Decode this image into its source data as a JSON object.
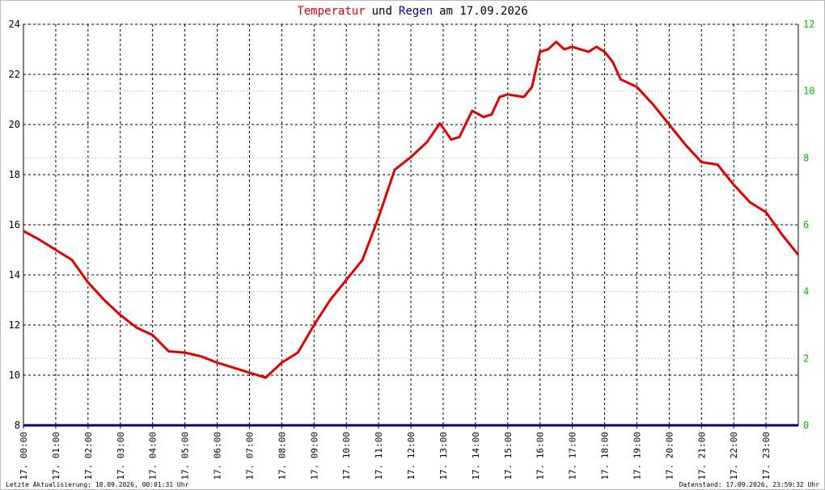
{
  "chart_data": {
    "type": "line",
    "title": [
      {
        "text": "Temperatur",
        "color": "#e00000"
      },
      {
        "text": "und",
        "color": "#000000"
      },
      {
        "text": "Regen",
        "color": "#000080"
      },
      {
        "text": "am 17.09.2026",
        "color": "#000000"
      }
    ],
    "footer_left": "Letzte Aktualisierung: 18.09.2026, 00:01:31 Uhr",
    "footer_right": "Datenstand: 17.09.2026, 23:59:32 Uhr",
    "xlim": [
      0,
      24
    ],
    "xticks": [
      {
        "value": 0,
        "label": "17. 00:00"
      },
      {
        "value": 1,
        "label": "17. 01:00"
      },
      {
        "value": 2,
        "label": "17. 02:00"
      },
      {
        "value": 3,
        "label": "17. 03:00"
      },
      {
        "value": 4,
        "label": "17. 04:00"
      },
      {
        "value": 5,
        "label": "17. 05:00"
      },
      {
        "value": 6,
        "label": "17. 06:00"
      },
      {
        "value": 7,
        "label": "17. 07:00"
      },
      {
        "value": 8,
        "label": "17. 08:00"
      },
      {
        "value": 9,
        "label": "17. 09:00"
      },
      {
        "value": 10,
        "label": "17. 10:00"
      },
      {
        "value": 11,
        "label": "17. 11:00"
      },
      {
        "value": 12,
        "label": "17. 12:00"
      },
      {
        "value": 13,
        "label": "17. 13:00"
      },
      {
        "value": 14,
        "label": "17. 14:00"
      },
      {
        "value": 15,
        "label": "17. 15:00"
      },
      {
        "value": 16,
        "label": "17. 16:00"
      },
      {
        "value": 17,
        "label": "17. 17:00"
      },
      {
        "value": 18,
        "label": "17. 18:00"
      },
      {
        "value": 19,
        "label": "17. 19:00"
      },
      {
        "value": 20,
        "label": "17. 20:00"
      },
      {
        "value": 21,
        "label": "17. 21:00"
      },
      {
        "value": 22,
        "label": "17. 22:00"
      },
      {
        "value": 23,
        "label": "17. 23:00"
      }
    ],
    "ylim": [
      8,
      24
    ],
    "yticks": [
      8,
      10,
      12,
      14,
      16,
      18,
      20,
      22,
      24
    ],
    "y2lim": [
      0,
      12
    ],
    "y2ticks": [
      0,
      2,
      4,
      6,
      8,
      10,
      12
    ],
    "y2_color": "#00c000",
    "grid": true,
    "series": [
      {
        "name": "Temperatur",
        "color": "#e00000",
        "axis": "y",
        "x": [
          0,
          0.5,
          1,
          1.5,
          2,
          2.5,
          3,
          3.5,
          4,
          4.5,
          5,
          5.5,
          6,
          6.5,
          7,
          7.5,
          8,
          8.5,
          9,
          9.5,
          10,
          10.5,
          11,
          11.5,
          12,
          12.5,
          12.9,
          13.25,
          13.5,
          13.9,
          14.25,
          14.5,
          14.75,
          15,
          15.5,
          15.75,
          16,
          16.25,
          16.5,
          16.75,
          17,
          17.5,
          17.75,
          18,
          18.25,
          18.5,
          19,
          19.5,
          20,
          20.5,
          21,
          21.5,
          22,
          22.5,
          23,
          23.5,
          24
        ],
        "values": [
          15.75,
          15.4,
          15.0,
          14.6,
          13.7,
          13.0,
          12.4,
          11.9,
          11.6,
          10.95,
          10.9,
          10.75,
          10.5,
          10.3,
          10.1,
          9.9,
          10.5,
          10.9,
          12.0,
          13.0,
          13.8,
          14.6,
          16.3,
          18.2,
          18.7,
          19.3,
          20.05,
          19.4,
          19.5,
          20.55,
          20.3,
          20.4,
          21.1,
          21.2,
          21.1,
          21.5,
          22.9,
          23.0,
          23.3,
          23.0,
          23.1,
          22.9,
          23.1,
          22.9,
          22.5,
          21.8,
          21.5,
          20.8,
          20.0,
          19.2,
          18.5,
          18.4,
          17.6,
          16.9,
          16.5,
          15.6,
          14.8
        ]
      },
      {
        "name": "Regen",
        "color": "#000080",
        "axis": "y2",
        "x": [
          0,
          24
        ],
        "values": [
          0,
          0
        ]
      }
    ]
  }
}
